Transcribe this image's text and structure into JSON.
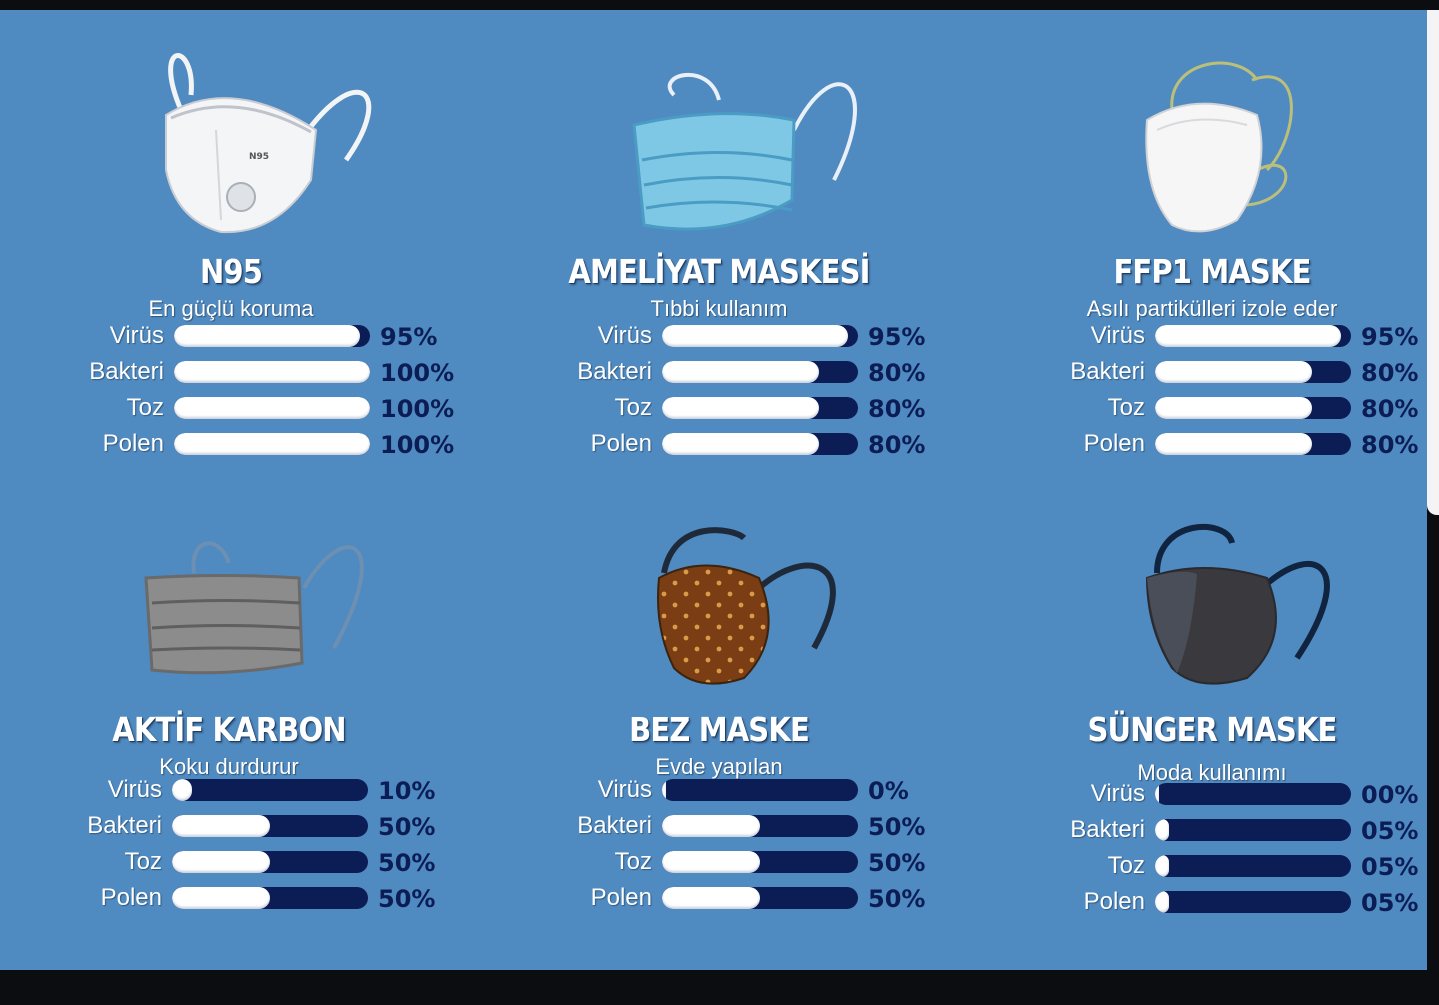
{
  "cards": [
    {
      "title": "N95",
      "subtitle": "En güçlü koruma",
      "icon": "n95-mask-icon",
      "mask_print": "N95",
      "metrics": [
        {
          "label": "Virüs",
          "value": "95%",
          "level": 0.95
        },
        {
          "label": "Bakteri",
          "value": "100%",
          "level": 1.0
        },
        {
          "label": "Toz",
          "value": "100%",
          "level": 1.0
        },
        {
          "label": "Polen",
          "value": "100%",
          "level": 1.0
        }
      ]
    },
    {
      "title": "AMELİYAT MASKESİ",
      "subtitle": "Tıbbi kullanım",
      "icon": "surgical-mask-icon",
      "metrics": [
        {
          "label": "Virüs",
          "value": "95%",
          "level": 0.95
        },
        {
          "label": "Bakteri",
          "value": "80%",
          "level": 0.8
        },
        {
          "label": "Toz",
          "value": "80%",
          "level": 0.8
        },
        {
          "label": "Polen",
          "value": "80%",
          "level": 0.8
        }
      ]
    },
    {
      "title": "FFP1 MASKE",
      "subtitle": "Asılı partikülleri izole eder",
      "icon": "ffp1-mask-icon",
      "metrics": [
        {
          "label": "Virüs",
          "value": "95%",
          "level": 0.95
        },
        {
          "label": "Bakteri",
          "value": "80%",
          "level": 0.8
        },
        {
          "label": "Toz",
          "value": "80%",
          "level": 0.8
        },
        {
          "label": "Polen",
          "value": "80%",
          "level": 0.8
        }
      ]
    },
    {
      "title": "AKTİF KARBON",
      "subtitle": "Koku durdurur",
      "icon": "activated-carbon-mask-icon",
      "metrics": [
        {
          "label": "Virüs",
          "value": "10%",
          "level": 0.1
        },
        {
          "label": "Bakteri",
          "value": "50%",
          "level": 0.5
        },
        {
          "label": "Toz",
          "value": "50%",
          "level": 0.5
        },
        {
          "label": "Polen",
          "value": "50%",
          "level": 0.5
        }
      ]
    },
    {
      "title": "BEZ MASKE",
      "subtitle": "Evde yapılan",
      "icon": "cloth-mask-icon",
      "metrics": [
        {
          "label": "Virüs",
          "value": "0%",
          "level": 0.0
        },
        {
          "label": "Bakteri",
          "value": "50%",
          "level": 0.5
        },
        {
          "label": "Toz",
          "value": "50%",
          "level": 0.5
        },
        {
          "label": "Polen",
          "value": "50%",
          "level": 0.5
        }
      ]
    },
    {
      "title": "SÜNGER MASKE",
      "subtitle": "Moda kullanımı",
      "icon": "sponge-mask-icon",
      "metrics": [
        {
          "label": "Virüs",
          "value": "00%",
          "level": 0.0
        },
        {
          "label": "Bakteri",
          "value": "05%",
          "level": 0.05
        },
        {
          "label": "Toz",
          "value": "05%",
          "level": 0.05
        },
        {
          "label": "Polen",
          "value": "05%",
          "level": 0.05
        }
      ]
    }
  ],
  "colors": {
    "background": "#4f8ac1",
    "bar_track": "#0c1d56",
    "bar_fill": "#ffffff",
    "value_text": "#0c1d56"
  }
}
